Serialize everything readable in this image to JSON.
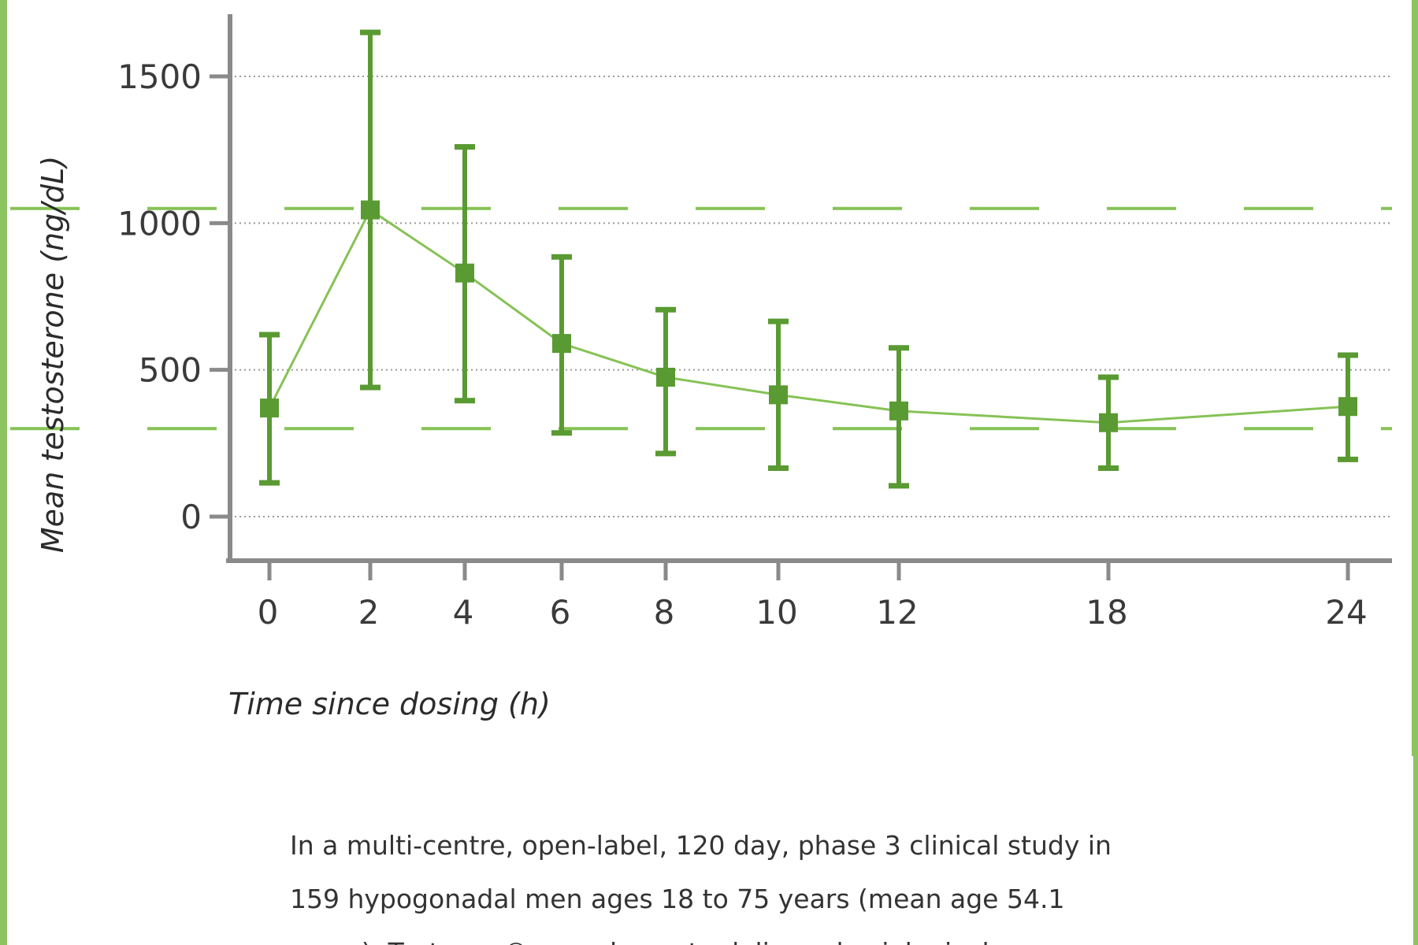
{
  "colors": {
    "frame": "#8cc461",
    "series": "#5a9a32",
    "reference_lines": "#86c255",
    "axis": "#8a8a8a",
    "grid": "#9a9a9a",
    "text": "#333333"
  },
  "chart_data": {
    "type": "line",
    "xlabel": "Time since dosing (h)",
    "ylabel": "Mean testosterone (ng/dL)",
    "x_categories": [
      "0",
      "2",
      "4",
      "6",
      "8",
      "10",
      "12",
      "18",
      "24"
    ],
    "y_ticks": [
      0,
      500,
      1000,
      1500
    ],
    "ylim": [
      -150,
      1700
    ],
    "grid": "horizontal dotted",
    "series": [
      {
        "x": [
          0,
          2,
          4,
          6,
          8,
          10,
          12,
          18,
          24
        ],
        "mean": [
          370,
          1045,
          830,
          590,
          475,
          415,
          360,
          320,
          375
        ],
        "error_upper": [
          620,
          1650,
          1260,
          885,
          705,
          665,
          575,
          475,
          550
        ],
        "error_lower": [
          115,
          440,
          395,
          285,
          215,
          165,
          105,
          165,
          195
        ],
        "marker": "square"
      }
    ],
    "reference_lines": [
      {
        "y": 1050,
        "style": "dashed"
      },
      {
        "y": 300,
        "style": "dashed"
      }
    ]
  },
  "caption": {
    "line1": "In a multi-centre, open-label, 120 day, phase 3 clinical study in",
    "line2": "159 hypogonadal men ages 18 to 75 years (mean age 54.1",
    "line3": "years), Testavan® was shown to deliver physiological"
  }
}
